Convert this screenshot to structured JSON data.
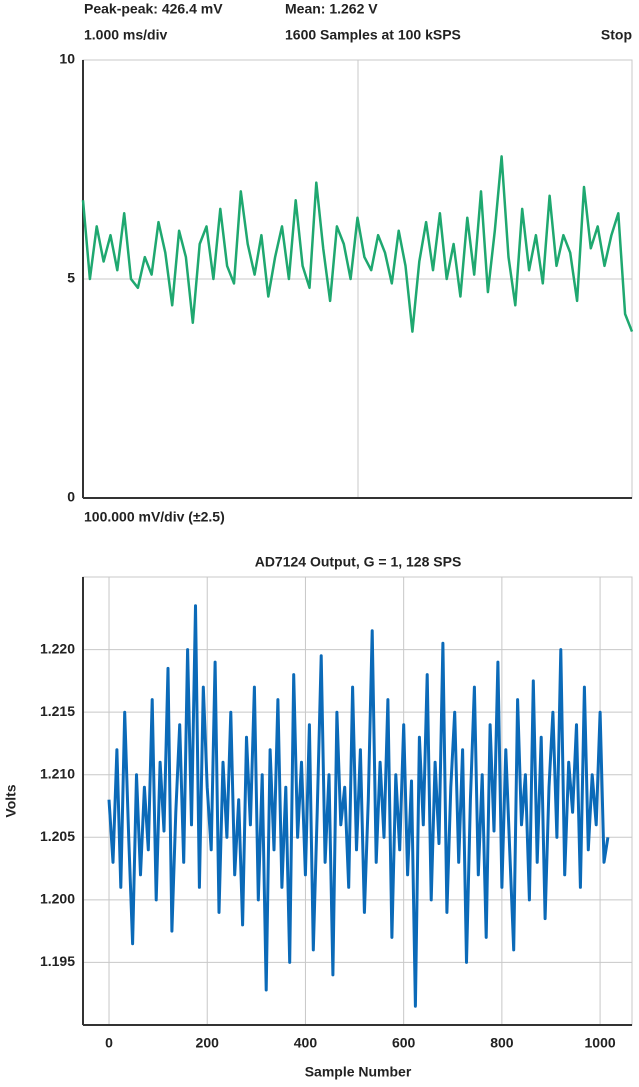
{
  "chart_data": [
    {
      "type": "line",
      "annotations": [
        "Peak-peak: 426.4 mV",
        "Mean: 1.262 V",
        "1.000 ms/div",
        "1600 Samples at 100 kSPS",
        "Stop",
        "100.000 mV/div (±2.5)"
      ],
      "values": [
        6.8,
        5.0,
        6.2,
        5.4,
        6.0,
        5.2,
        6.5,
        5.0,
        4.8,
        5.5,
        5.1,
        6.3,
        5.6,
        4.4,
        6.1,
        5.5,
        4.0,
        5.8,
        6.2,
        5.0,
        6.6,
        5.3,
        4.9,
        7.0,
        5.8,
        5.1,
        6.0,
        4.6,
        5.5,
        6.2,
        5.0,
        6.8,
        5.3,
        4.8,
        7.2,
        5.7,
        4.5,
        6.2,
        5.8,
        5.0,
        6.4,
        5.5,
        5.2,
        6.0,
        5.6,
        4.9,
        6.1,
        5.3,
        3.8,
        5.4,
        6.3,
        5.2,
        6.5,
        5.0,
        5.8,
        4.6,
        6.4,
        5.1,
        7.0,
        4.7,
        6.1,
        7.8,
        5.5,
        4.4,
        6.6,
        5.2,
        6.0,
        4.9,
        6.9,
        5.3,
        6.0,
        5.6,
        4.5,
        7.1,
        5.7,
        6.2,
        5.3,
        6.0,
        6.5,
        4.2,
        3.8
      ],
      "color": "#1fa870",
      "ylim": [
        0,
        10
      ],
      "yticks": [
        0,
        5,
        10
      ],
      "grid": true
    },
    {
      "type": "line",
      "title": "AD7124 Output, G = 1, 128 SPS",
      "xlabel": "Sample Number",
      "ylabel": "Volts",
      "x": [
        0,
        8,
        16,
        24,
        32,
        40,
        48,
        56,
        64,
        72,
        80,
        88,
        96,
        104,
        112,
        120,
        128,
        136,
        144,
        152,
        160,
        168,
        176,
        184,
        192,
        200,
        208,
        216,
        224,
        232,
        240,
        248,
        256,
        264,
        272,
        280,
        288,
        296,
        304,
        312,
        320,
        328,
        336,
        344,
        352,
        360,
        368,
        376,
        384,
        392,
        400,
        408,
        416,
        424,
        432,
        440,
        448,
        456,
        464,
        472,
        480,
        488,
        496,
        504,
        512,
        520,
        528,
        536,
        544,
        552,
        560,
        568,
        576,
        584,
        592,
        600,
        608,
        616,
        624,
        632,
        640,
        648,
        656,
        664,
        672,
        680,
        688,
        696,
        704,
        712,
        720,
        728,
        736,
        744,
        752,
        760,
        768,
        776,
        784,
        792,
        800,
        808,
        816,
        824,
        832,
        840,
        848,
        856,
        864,
        872,
        880,
        888,
        896,
        904,
        912,
        920,
        928,
        936,
        944,
        952,
        960,
        968,
        976,
        984,
        992,
        1000,
        1008,
        1016
      ],
      "values": [
        1.208,
        1.203,
        1.212,
        1.201,
        1.215,
        1.205,
        1.1965,
        1.21,
        1.202,
        1.209,
        1.204,
        1.216,
        1.2,
        1.211,
        1.2055,
        1.2185,
        1.1975,
        1.207,
        1.214,
        1.203,
        1.22,
        1.206,
        1.2235,
        1.201,
        1.217,
        1.209,
        1.204,
        1.219,
        1.199,
        1.211,
        1.205,
        1.215,
        1.202,
        1.208,
        1.198,
        1.213,
        1.206,
        1.217,
        1.2,
        1.21,
        1.1928,
        1.212,
        1.204,
        1.216,
        1.201,
        1.209,
        1.195,
        1.218,
        1.205,
        1.211,
        1.202,
        1.214,
        1.196,
        1.207,
        1.2195,
        1.203,
        1.21,
        1.194,
        1.215,
        1.206,
        1.209,
        1.201,
        1.217,
        1.204,
        1.212,
        1.199,
        1.208,
        1.2215,
        1.203,
        1.211,
        1.205,
        1.216,
        1.197,
        1.21,
        1.204,
        1.214,
        1.202,
        1.2095,
        1.1915,
        1.213,
        1.206,
        1.218,
        1.2,
        1.211,
        1.2045,
        1.2205,
        1.199,
        1.209,
        1.215,
        1.203,
        1.212,
        1.195,
        1.208,
        1.217,
        1.202,
        1.21,
        1.197,
        1.214,
        1.2055,
        1.219,
        1.201,
        1.212,
        1.204,
        1.196,
        1.216,
        1.206,
        1.21,
        1.2,
        1.2175,
        1.203,
        1.213,
        1.1985,
        1.209,
        1.215,
        1.205,
        1.22,
        1.202,
        1.211,
        1.207,
        1.214,
        1.201,
        1.217,
        1.204,
        1.21,
        1.206,
        1.215,
        1.203,
        1.205
      ],
      "color": "#0b6ab8",
      "xlim": [
        -53,
        1065
      ],
      "ylim": [
        1.19,
        1.2258
      ],
      "xticks": [
        0,
        200,
        400,
        600,
        800,
        1000
      ],
      "yticks": [
        {
          "value": 1.195,
          "label": "1.195"
        },
        {
          "value": 1.2,
          "label": "1.200"
        },
        {
          "value": 1.205,
          "label": "1.205"
        },
        {
          "value": 1.21,
          "label": "1.210"
        },
        {
          "value": 1.215,
          "label": "1.215"
        },
        {
          "value": 1.22,
          "label": "1.220"
        }
      ],
      "grid": true
    }
  ]
}
